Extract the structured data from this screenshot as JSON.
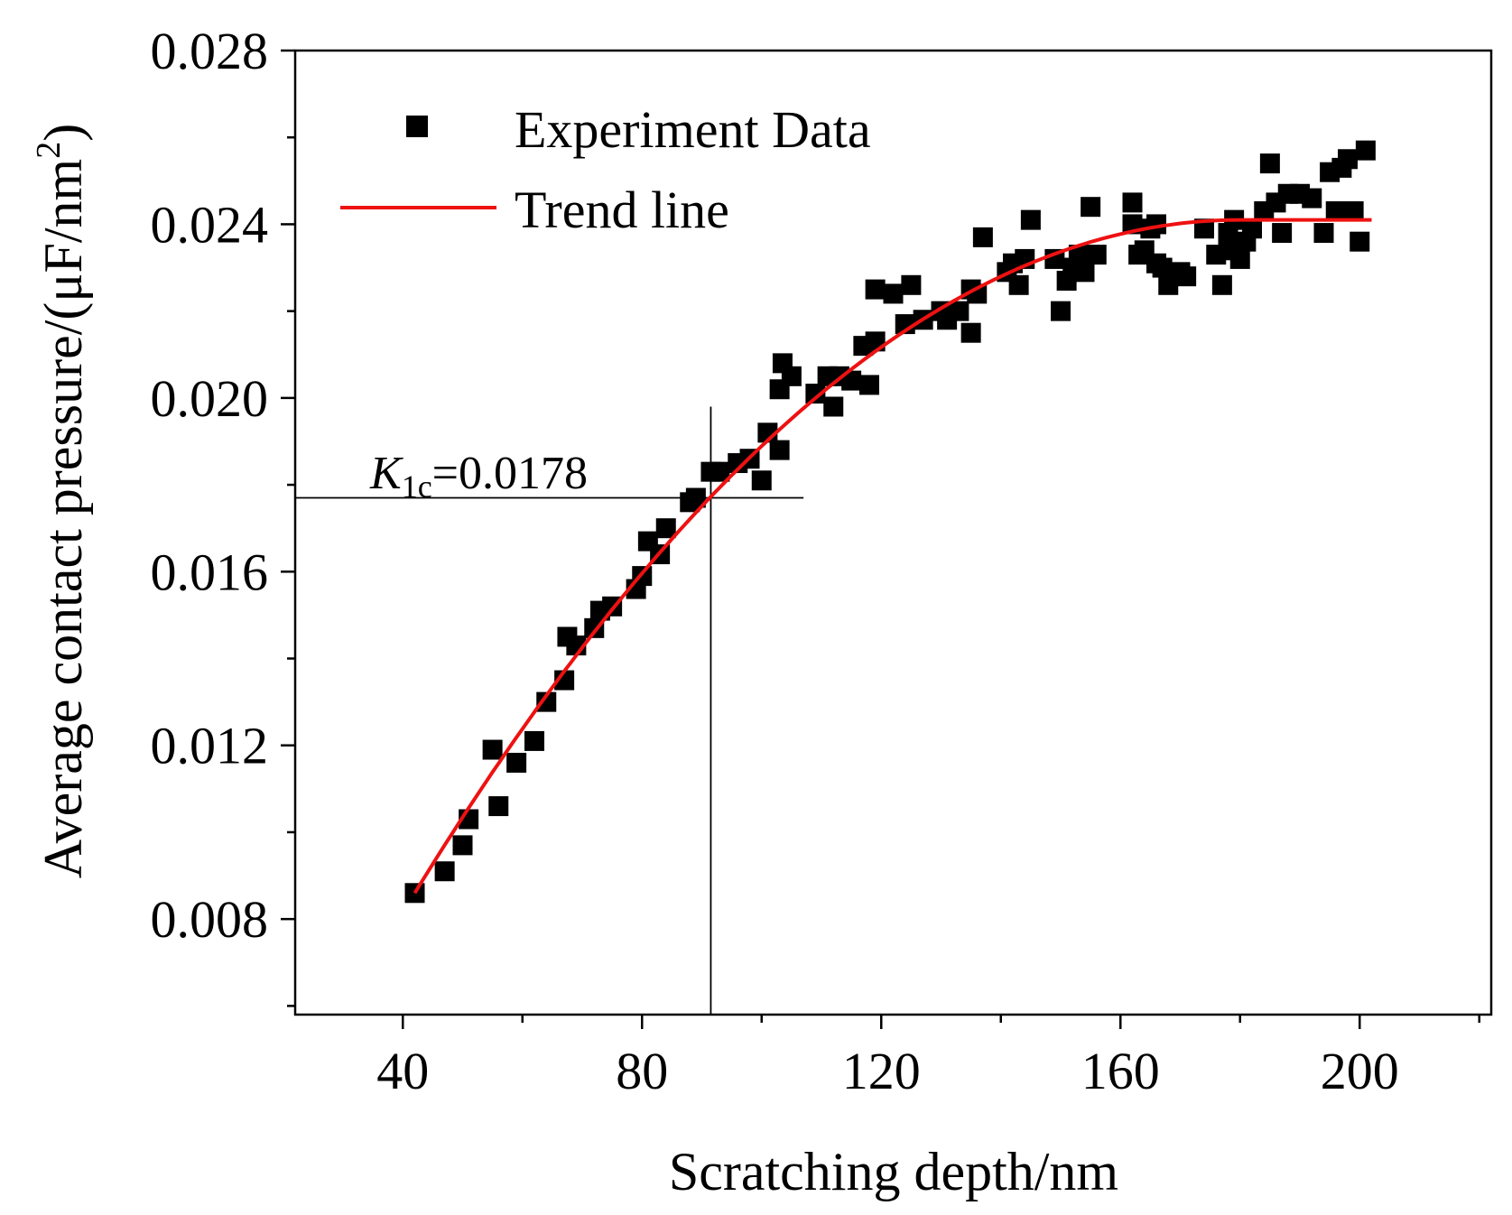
{
  "chart_data": {
    "type": "scatter",
    "xlabel": "Scratching depth/nm",
    "ylabel_main": "Average contact pressure/(μF/nm",
    "ylabel_sup": "2",
    "ylabel_close": ")",
    "xlim": [
      22,
      222
    ],
    "ylim": [
      0.0058,
      0.028
    ],
    "xticks": [
      40,
      80,
      120,
      160,
      200
    ],
    "xtick_labels": [
      "40",
      "80",
      "120",
      "160",
      "200"
    ],
    "xminor": [
      20,
      60,
      100,
      140,
      180,
      220
    ],
    "yticks": [
      0.008,
      0.012,
      0.016,
      0.02,
      0.024,
      0.028
    ],
    "ytick_labels": [
      "0.008",
      "0.012",
      "0.016",
      "0.020",
      "0.024",
      "0.028"
    ],
    "yminor": [
      0.006,
      0.01,
      0.014,
      0.018,
      0.022,
      0.026
    ],
    "legend": {
      "position": "top-left",
      "scatter_label": "Experiment Data",
      "line_label": "Trend line"
    },
    "colors": {
      "points": "#000000",
      "trend": "#ee1111",
      "axis": "#000000"
    },
    "annotation": {
      "k_main": "K",
      "k_sub": "1c",
      "k_value": "=0.0178",
      "x": 91.5,
      "y": 0.0177
    },
    "series": [
      {
        "name": "Experiment Data",
        "kind": "scatter",
        "points": [
          [
            42,
            0.0086
          ],
          [
            47,
            0.0091
          ],
          [
            50,
            0.0097
          ],
          [
            51,
            0.0103
          ],
          [
            55,
            0.0119
          ],
          [
            56,
            0.0106
          ],
          [
            59,
            0.0116
          ],
          [
            62,
            0.0121
          ],
          [
            64,
            0.013
          ],
          [
            67,
            0.0135
          ],
          [
            67.5,
            0.0145
          ],
          [
            69,
            0.0143
          ],
          [
            72,
            0.0147
          ],
          [
            73,
            0.0151
          ],
          [
            75,
            0.0152
          ],
          [
            79,
            0.0156
          ],
          [
            80,
            0.0159
          ],
          [
            81,
            0.0167
          ],
          [
            83,
            0.0164
          ],
          [
            84,
            0.017
          ],
          [
            88,
            0.0176
          ],
          [
            89,
            0.0177
          ],
          [
            91.5,
            0.0183
          ],
          [
            93,
            0.0183
          ],
          [
            96,
            0.0185
          ],
          [
            98,
            0.0186
          ],
          [
            100,
            0.0181
          ],
          [
            101,
            0.0192
          ],
          [
            103,
            0.0188
          ],
          [
            103,
            0.0202
          ],
          [
            103.5,
            0.0208
          ],
          [
            105,
            0.0205
          ],
          [
            109,
            0.0201
          ],
          [
            111,
            0.0205
          ],
          [
            112,
            0.0198
          ],
          [
            113,
            0.0205
          ],
          [
            115,
            0.0204
          ],
          [
            117,
            0.0212
          ],
          [
            118,
            0.0203
          ],
          [
            119,
            0.0213
          ],
          [
            119,
            0.0225
          ],
          [
            122,
            0.0224
          ],
          [
            124,
            0.0217
          ],
          [
            125,
            0.0226
          ],
          [
            127,
            0.0218
          ],
          [
            130,
            0.022
          ],
          [
            131,
            0.0218
          ],
          [
            133,
            0.022
          ],
          [
            135,
            0.0225
          ],
          [
            135,
            0.0215
          ],
          [
            136,
            0.0224
          ],
          [
            137,
            0.0237
          ],
          [
            141,
            0.0229
          ],
          [
            142,
            0.0231
          ],
          [
            143,
            0.0226
          ],
          [
            144,
            0.0232
          ],
          [
            145,
            0.0241
          ],
          [
            149,
            0.0232
          ],
          [
            150,
            0.022
          ],
          [
            151,
            0.0227
          ],
          [
            152,
            0.023
          ],
          [
            153,
            0.0233
          ],
          [
            154,
            0.0229
          ],
          [
            155,
            0.0244
          ],
          [
            156,
            0.0233
          ],
          [
            162,
            0.0245
          ],
          [
            162,
            0.024
          ],
          [
            163,
            0.0233
          ],
          [
            164,
            0.0234
          ],
          [
            165,
            0.0239
          ],
          [
            166,
            0.024
          ],
          [
            166,
            0.0231
          ],
          [
            167,
            0.023
          ],
          [
            168,
            0.0226
          ],
          [
            170,
            0.0229
          ],
          [
            171,
            0.0228
          ],
          [
            174,
            0.0239
          ],
          [
            176,
            0.0233
          ],
          [
            177,
            0.0226
          ],
          [
            178,
            0.0238
          ],
          [
            178,
            0.0234
          ],
          [
            179,
            0.0241
          ],
          [
            180,
            0.0232
          ],
          [
            181,
            0.0236
          ],
          [
            182,
            0.0239
          ],
          [
            184,
            0.0243
          ],
          [
            185,
            0.0254
          ],
          [
            186,
            0.0245
          ],
          [
            187,
            0.0238
          ],
          [
            188,
            0.0247
          ],
          [
            190,
            0.0247
          ],
          [
            192,
            0.0246
          ],
          [
            194,
            0.0238
          ],
          [
            195,
            0.0252
          ],
          [
            196,
            0.0243
          ],
          [
            197,
            0.0253
          ],
          [
            198,
            0.0255
          ],
          [
            199,
            0.0243
          ],
          [
            200,
            0.0236
          ],
          [
            201,
            0.0257
          ]
        ]
      },
      {
        "name": "Trend line",
        "kind": "line",
        "x_range": [
          42,
          202
        ],
        "model": "y = 0.0241 - 0.0155 * (1 - (x - 42)/138)^2 for x <= 180, else 0.0241"
      }
    ]
  }
}
